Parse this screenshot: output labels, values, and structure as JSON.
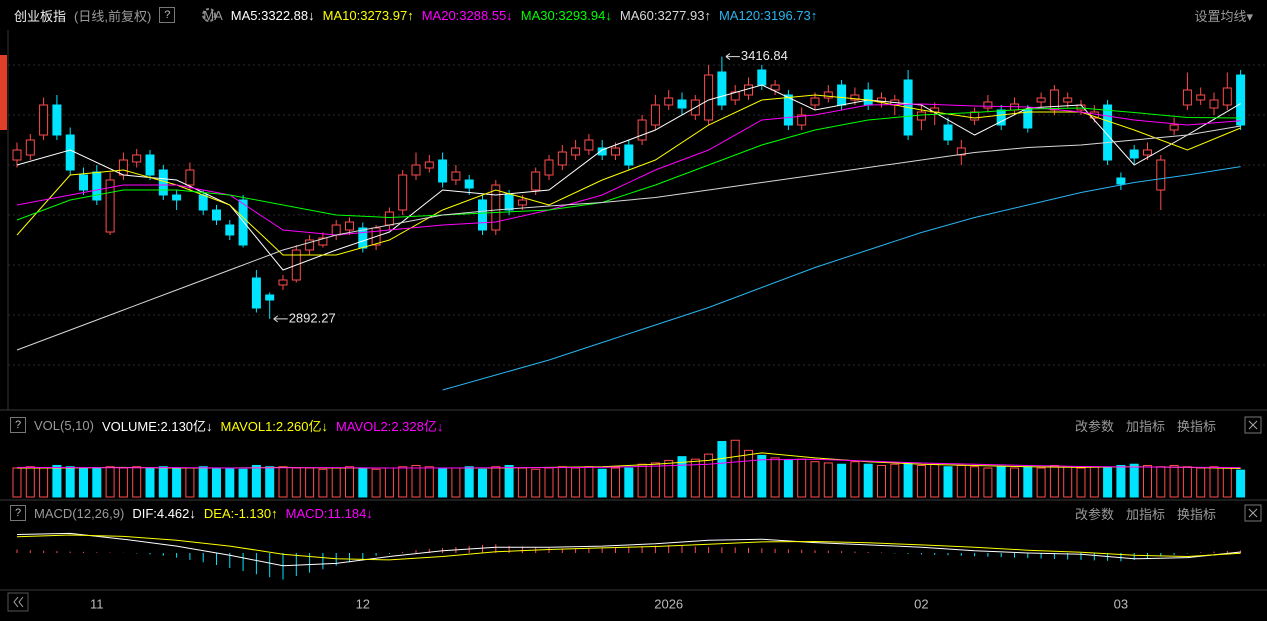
{
  "header": {
    "title": "创业板指",
    "subtitle": "(日线,前复权)",
    "help_icon": "?",
    "ma_label": "MA",
    "settings": "设置均线▾"
  },
  "price_panel": {
    "ylim": [
      2710,
      3470
    ],
    "grid_levels": [
      2800,
      2900,
      3000,
      3100,
      3200,
      3300,
      3400
    ],
    "up_color": "#ff4c4c",
    "down_color": "#00e5ff",
    "candles": [
      [
        3210,
        3245,
        3195,
        3230
      ],
      [
        3220,
        3262,
        3210,
        3250
      ],
      [
        3260,
        3335,
        3250,
        3320
      ],
      [
        3320,
        3340,
        3250,
        3260
      ],
      [
        3260,
        3275,
        3180,
        3190
      ],
      [
        3180,
        3195,
        3140,
        3150
      ],
      [
        3186,
        3200,
        3120,
        3130
      ],
      [
        3066,
        3185,
        3060,
        3170
      ],
      [
        3180,
        3225,
        3170,
        3210
      ],
      [
        3206,
        3232,
        3195,
        3220
      ],
      [
        3220,
        3230,
        3170,
        3180
      ],
      [
        3190,
        3200,
        3130,
        3140
      ],
      [
        3140,
        3150,
        3110,
        3130
      ],
      [
        3160,
        3205,
        3150,
        3190
      ],
      [
        3140,
        3150,
        3100,
        3110
      ],
      [
        3110,
        3120,
        3080,
        3090
      ],
      [
        3080,
        3090,
        3050,
        3060
      ],
      [
        3130,
        3140,
        3035,
        3040
      ],
      [
        2974,
        2990,
        2905,
        2914
      ],
      [
        2940,
        2945,
        2892.27,
        2930
      ],
      [
        2960,
        2980,
        2950,
        2970
      ],
      [
        2970,
        3040,
        2965,
        3030
      ],
      [
        3030,
        3060,
        3020,
        3050
      ],
      [
        3040,
        3065,
        3035,
        3054
      ],
      [
        3060,
        3090,
        3050,
        3080
      ],
      [
        3070,
        3095,
        3060,
        3086
      ],
      [
        3074,
        3085,
        3025,
        3034
      ],
      [
        3040,
        3080,
        3030,
        3074
      ],
      [
        3080,
        3115,
        3070,
        3106
      ],
      [
        3110,
        3190,
        3100,
        3180
      ],
      [
        3180,
        3225,
        3170,
        3200
      ],
      [
        3194,
        3220,
        3185,
        3206
      ],
      [
        3210,
        3225,
        3155,
        3166
      ],
      [
        3170,
        3200,
        3160,
        3186
      ],
      [
        3170,
        3180,
        3140,
        3154
      ],
      [
        3130,
        3140,
        3060,
        3070
      ],
      [
        3070,
        3170,
        3060,
        3160
      ],
      [
        3140,
        3150,
        3100,
        3110
      ],
      [
        3120,
        3140,
        3110,
        3130
      ],
      [
        3150,
        3195,
        3140,
        3186
      ],
      [
        3180,
        3220,
        3170,
        3210
      ],
      [
        3200,
        3240,
        3190,
        3226
      ],
      [
        3220,
        3250,
        3210,
        3234
      ],
      [
        3230,
        3262,
        3220,
        3250
      ],
      [
        3234,
        3250,
        3210,
        3220
      ],
      [
        3220,
        3245,
        3210,
        3234
      ],
      [
        3240,
        3250,
        3190,
        3200
      ],
      [
        3250,
        3300,
        3240,
        3290
      ],
      [
        3280,
        3340,
        3270,
        3320
      ],
      [
        3320,
        3350,
        3310,
        3334
      ],
      [
        3330,
        3345,
        3300,
        3314
      ],
      [
        3300,
        3340,
        3290,
        3330
      ],
      [
        3290,
        3400,
        3280,
        3380
      ],
      [
        3386,
        3416.84,
        3310,
        3320
      ],
      [
        3330,
        3360,
        3320,
        3346
      ],
      [
        3340,
        3375,
        3330,
        3360
      ],
      [
        3390,
        3400,
        3350,
        3360
      ],
      [
        3350,
        3370,
        3340,
        3360
      ],
      [
        3340,
        3350,
        3270,
        3280
      ],
      [
        3280,
        3315,
        3270,
        3300
      ],
      [
        3320,
        3345,
        3310,
        3334
      ],
      [
        3334,
        3360,
        3325,
        3346
      ],
      [
        3360,
        3370,
        3310,
        3320
      ],
      [
        3330,
        3355,
        3320,
        3340
      ],
      [
        3350,
        3365,
        3310,
        3320
      ],
      [
        3326,
        3345,
        3315,
        3334
      ],
      [
        3320,
        3340,
        3300,
        3330
      ],
      [
        3370,
        3390,
        3250,
        3260
      ],
      [
        3290,
        3320,
        3270,
        3306
      ],
      [
        3306,
        3325,
        3280,
        3314
      ],
      [
        3280,
        3295,
        3240,
        3250
      ],
      [
        3220,
        3250,
        3200,
        3234
      ],
      [
        3290,
        3315,
        3280,
        3306
      ],
      [
        3314,
        3340,
        3305,
        3326
      ],
      [
        3310,
        3320,
        3270,
        3280
      ],
      [
        3310,
        3335,
        3300,
        3322
      ],
      [
        3310,
        3320,
        3265,
        3274
      ],
      [
        3326,
        3345,
        3315,
        3334
      ],
      [
        3310,
        3360,
        3300,
        3350
      ],
      [
        3326,
        3345,
        3315,
        3334
      ],
      [
        3310,
        3330,
        3300,
        3320
      ],
      [
        3294,
        3320,
        3285,
        3306
      ],
      [
        3320,
        3330,
        3200,
        3210
      ],
      [
        3174,
        3185,
        3150,
        3162
      ],
      [
        3230,
        3240,
        3200,
        3214
      ],
      [
        3220,
        3245,
        3210,
        3230
      ],
      [
        3150,
        3220,
        3110,
        3210
      ],
      [
        3270,
        3295,
        3260,
        3280
      ],
      [
        3320,
        3385,
        3310,
        3350
      ],
      [
        3330,
        3355,
        3320,
        3340
      ],
      [
        3314,
        3345,
        3300,
        3330
      ],
      [
        3320,
        3385,
        3310,
        3354
      ],
      [
        3380,
        3390,
        3270,
        3280
      ]
    ],
    "sample_index": [
      0,
      4,
      8,
      12,
      16,
      20,
      24,
      28,
      32,
      36,
      40,
      44,
      48,
      52,
      56,
      60,
      64,
      68,
      72,
      76,
      80,
      84,
      88,
      92
    ],
    "ma_lines": [
      {
        "label": "MA5:3322.88↓",
        "color": "#ffffff",
        "values": [
          3200,
          3230,
          3180,
          3170,
          3120,
          2990,
          3030,
          3066,
          3150,
          3140,
          3150,
          3230,
          3270,
          3330,
          3360,
          3310,
          3330,
          3320,
          3260,
          3314,
          3320,
          3200,
          3260,
          3322.88
        ]
      },
      {
        "label": "MA10:3273.97↑",
        "color": "#ffff00",
        "values": [
          3060,
          3180,
          3190,
          3160,
          3120,
          3020,
          3020,
          3050,
          3110,
          3150,
          3120,
          3170,
          3210,
          3280,
          3330,
          3340,
          3330,
          3310,
          3294,
          3306,
          3306,
          3270,
          3230,
          3273.97
        ]
      },
      {
        "label": "MA20:3288.55↓",
        "color": "#ff00ff",
        "values": [
          3120,
          3140,
          3160,
          3160,
          3140,
          3070,
          3060,
          3070,
          3080,
          3086,
          3110,
          3140,
          3190,
          3230,
          3290,
          3300,
          3320,
          3322,
          3318,
          3316,
          3306,
          3290,
          3280,
          3288.55
        ]
      },
      {
        "label": "MA30:3293.94↓",
        "color": "#00ff00",
        "values": [
          3090,
          3130,
          3150,
          3150,
          3140,
          3120,
          3100,
          3095,
          3100,
          3105,
          3110,
          3125,
          3160,
          3200,
          3240,
          3270,
          3290,
          3300,
          3305,
          3312,
          3314,
          3305,
          3295,
          3293.94
        ]
      },
      {
        "label": "MA60:3277.93↑",
        "color": "#d8d8d8",
        "values": [
          2830,
          2870,
          2910,
          2950,
          2990,
          3030,
          3060,
          3080,
          3100,
          3110,
          3118,
          3125,
          3135,
          3150,
          3165,
          3180,
          3195,
          3210,
          3225,
          3235,
          3240,
          3250,
          3260,
          3277.93
        ]
      },
      {
        "label": "MA120:3196.73↑",
        "color": "#2ab4f0",
        "values": [
          null,
          null,
          null,
          null,
          null,
          null,
          null,
          null,
          2750,
          2780,
          2810,
          2845,
          2880,
          2915,
          2955,
          2995,
          3030,
          3065,
          3095,
          3120,
          3145,
          3165,
          3180,
          3196.73
        ]
      }
    ]
  },
  "volume_panel": {
    "title": "VOL(5,10)",
    "ylim": [
      0,
      4.6
    ],
    "legend": [
      {
        "label": "VOLUME:2.130亿↓",
        "color": "#ffffff"
      },
      {
        "label": "MAVOL1:2.260亿↓",
        "color": "#ffff00"
      },
      {
        "label": "MAVOL2:2.328亿↓",
        "color": "#ff00ff"
      }
    ],
    "values": [
      2.3,
      2.4,
      2.3,
      2.5,
      2.4,
      2.3,
      2.3,
      2.4,
      2.3,
      2.4,
      2.3,
      2.4,
      2.3,
      2.3,
      2.4,
      2.3,
      2.3,
      2.2,
      2.5,
      2.4,
      2.4,
      2.3,
      2.3,
      2.2,
      2.3,
      2.4,
      2.3,
      2.2,
      2.3,
      2.4,
      2.5,
      2.4,
      2.3,
      2.3,
      2.4,
      2.2,
      2.4,
      2.5,
      2.3,
      2.2,
      2.3,
      2.4,
      2.3,
      2.4,
      2.2,
      2.3,
      2.3,
      2.6,
      2.7,
      2.9,
      3.2,
      3.0,
      3.4,
      4.4,
      4.5,
      3.7,
      3.3,
      3.1,
      2.9,
      3.0,
      2.8,
      2.7,
      2.6,
      2.8,
      2.6,
      2.5,
      2.6,
      2.7,
      2.5,
      2.6,
      2.4,
      2.5,
      2.4,
      2.3,
      2.4,
      2.3,
      2.4,
      2.3,
      2.5,
      2.4,
      2.3,
      2.4,
      2.3,
      2.5,
      2.6,
      2.5,
      2.4,
      2.5,
      2.4,
      2.3,
      2.4,
      2.3,
      2.13
    ],
    "mavol1": [
      2.3,
      2.3,
      2.35,
      2.3,
      2.3,
      2.35,
      2.3,
      2.3,
      2.3,
      2.3,
      2.35,
      2.4,
      2.6,
      2.9,
      3.5,
      3.1,
      2.8,
      2.6,
      2.5,
      2.4,
      2.35,
      2.4,
      2.35,
      2.26
    ],
    "mavol2": [
      2.35,
      2.33,
      2.32,
      2.33,
      2.3,
      2.32,
      2.33,
      2.3,
      2.3,
      2.32,
      2.33,
      2.35,
      2.45,
      2.6,
      2.95,
      3.0,
      2.85,
      2.7,
      2.6,
      2.5,
      2.42,
      2.38,
      2.36,
      2.328
    ]
  },
  "macd_panel": {
    "title": "MACD(12,26,9)",
    "ylim": [
      -130,
      130
    ],
    "legend": [
      {
        "label": "DIF:4.462↓",
        "color": "#ffffff"
      },
      {
        "label": "DEA:-1.130↑",
        "color": "#ffff00"
      },
      {
        "label": "MACD:11.184↓",
        "color": "#ff00ff"
      }
    ],
    "histogram": [
      15,
      12,
      10,
      8,
      6,
      5,
      3,
      2,
      1,
      -2,
      -6,
      -12,
      -20,
      -30,
      -40,
      -52,
      -65,
      -78,
      -92,
      -105,
      -115,
      -100,
      -85,
      -70,
      -55,
      -40,
      -25,
      -12,
      -4,
      5,
      12,
      18,
      22,
      26,
      30,
      35,
      38,
      30,
      28,
      25,
      22,
      20,
      18,
      20,
      22,
      25,
      28,
      30,
      32,
      34,
      30,
      28,
      26,
      25,
      24,
      22,
      20,
      18,
      16,
      14,
      12,
      10,
      8,
      6,
      4,
      2,
      -2,
      -4,
      -6,
      -8,
      -10,
      -12,
      -14,
      -16,
      -18,
      -20,
      -22,
      -24,
      -26,
      -28,
      -30,
      -32,
      -34,
      -36,
      -30,
      -22,
      -15,
      -8,
      -2,
      3,
      6,
      9,
      11.184
    ],
    "dif": [
      80,
      85,
      60,
      30,
      -10,
      -55,
      -45,
      -15,
      10,
      25,
      25,
      30,
      40,
      55,
      60,
      45,
      35,
      25,
      10,
      0,
      -5,
      -25,
      -20,
      4.462
    ],
    "dea": [
      70,
      78,
      72,
      55,
      30,
      -5,
      -25,
      -30,
      -15,
      5,
      15,
      22,
      28,
      38,
      48,
      50,
      44,
      35,
      25,
      12,
      3,
      -10,
      -15,
      -1.13
    ]
  },
  "panel_actions": [
    "改参数",
    "加指标",
    "换指标"
  ],
  "x_axis": {
    "labels": [
      null,
      null,
      null,
      null,
      null,
      null,
      "11",
      null,
      null,
      null,
      null,
      null,
      null,
      null,
      null,
      null,
      null,
      null,
      null,
      null,
      null,
      null,
      null,
      null,
      null,
      null,
      "12",
      null,
      null,
      null,
      null,
      null,
      null,
      null,
      null,
      null,
      null,
      null,
      null,
      null,
      null,
      null,
      null,
      null,
      null,
      null,
      null,
      null,
      null,
      "2026",
      null,
      null,
      null,
      null,
      null,
      null,
      null,
      null,
      null,
      null,
      null,
      null,
      null,
      null,
      null,
      null,
      null,
      null,
      "02",
      null,
      null,
      null,
      null,
      null,
      null,
      null,
      null,
      null,
      null,
      null,
      null,
      null,
      null,
      "03",
      null,
      null,
      null,
      null,
      null,
      null,
      null,
      null,
      null,
      null
    ]
  }
}
